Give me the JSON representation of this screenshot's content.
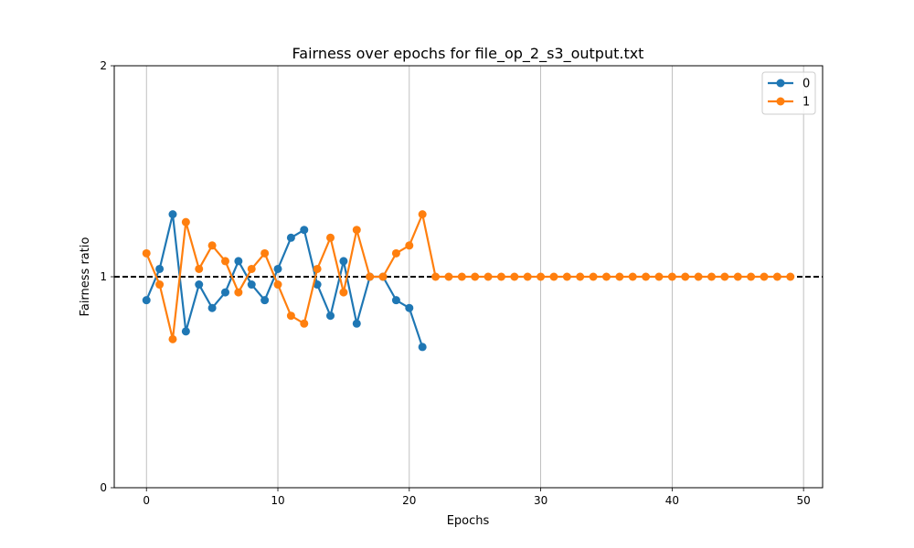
{
  "chart_data": {
    "type": "line",
    "title": "Fairness over epochs for file_op_2_s3_output.txt",
    "xlabel": "Epochs",
    "ylabel": "Fairness ratio",
    "xlim": [
      -2.45,
      51.45
    ],
    "ylim": [
      0,
      2
    ],
    "xticks": [
      0,
      10,
      20,
      30,
      40,
      50
    ],
    "yticks": [
      0,
      1,
      2
    ],
    "grid": "vertical",
    "legend_position": "top-right",
    "reference_line": {
      "y": 1,
      "style": "dashed",
      "color": "#000000"
    },
    "series": [
      {
        "name": "0",
        "color": "#1f77b4",
        "x": [
          0,
          1,
          2,
          3,
          4,
          5,
          6,
          7,
          8,
          9,
          10,
          11,
          12,
          13,
          14,
          15,
          16,
          17,
          18,
          19,
          20,
          21
        ],
        "values": [
          0.889,
          1.037,
          1.296,
          0.741,
          0.963,
          0.852,
          0.926,
          1.074,
          0.963,
          0.889,
          1.037,
          1.185,
          1.222,
          0.963,
          0.815,
          1.074,
          0.778,
          1.0,
          1.0,
          0.889,
          0.852,
          0.667
        ]
      },
      {
        "name": "1",
        "color": "#ff7f0e",
        "x": [
          0,
          1,
          2,
          3,
          4,
          5,
          6,
          7,
          8,
          9,
          10,
          11,
          12,
          13,
          14,
          15,
          16,
          17,
          18,
          19,
          20,
          21,
          22,
          23,
          24,
          25,
          26,
          27,
          28,
          29,
          30,
          31,
          32,
          33,
          34,
          35,
          36,
          37,
          38,
          39,
          40,
          41,
          42,
          43,
          44,
          45,
          46,
          47,
          48,
          49
        ],
        "values": [
          1.111,
          0.963,
          0.704,
          1.259,
          1.037,
          1.148,
          1.074,
          0.926,
          1.037,
          1.111,
          0.963,
          0.815,
          0.778,
          1.037,
          1.185,
          0.926,
          1.222,
          1.0,
          1.0,
          1.111,
          1.148,
          1.296,
          1.0,
          1.0,
          1.0,
          1.0,
          1.0,
          1.0,
          1.0,
          1.0,
          1.0,
          1.0,
          1.0,
          1.0,
          1.0,
          1.0,
          1.0,
          1.0,
          1.0,
          1.0,
          1.0,
          1.0,
          1.0,
          1.0,
          1.0,
          1.0,
          1.0,
          1.0,
          1.0,
          1.0
        ]
      }
    ]
  }
}
